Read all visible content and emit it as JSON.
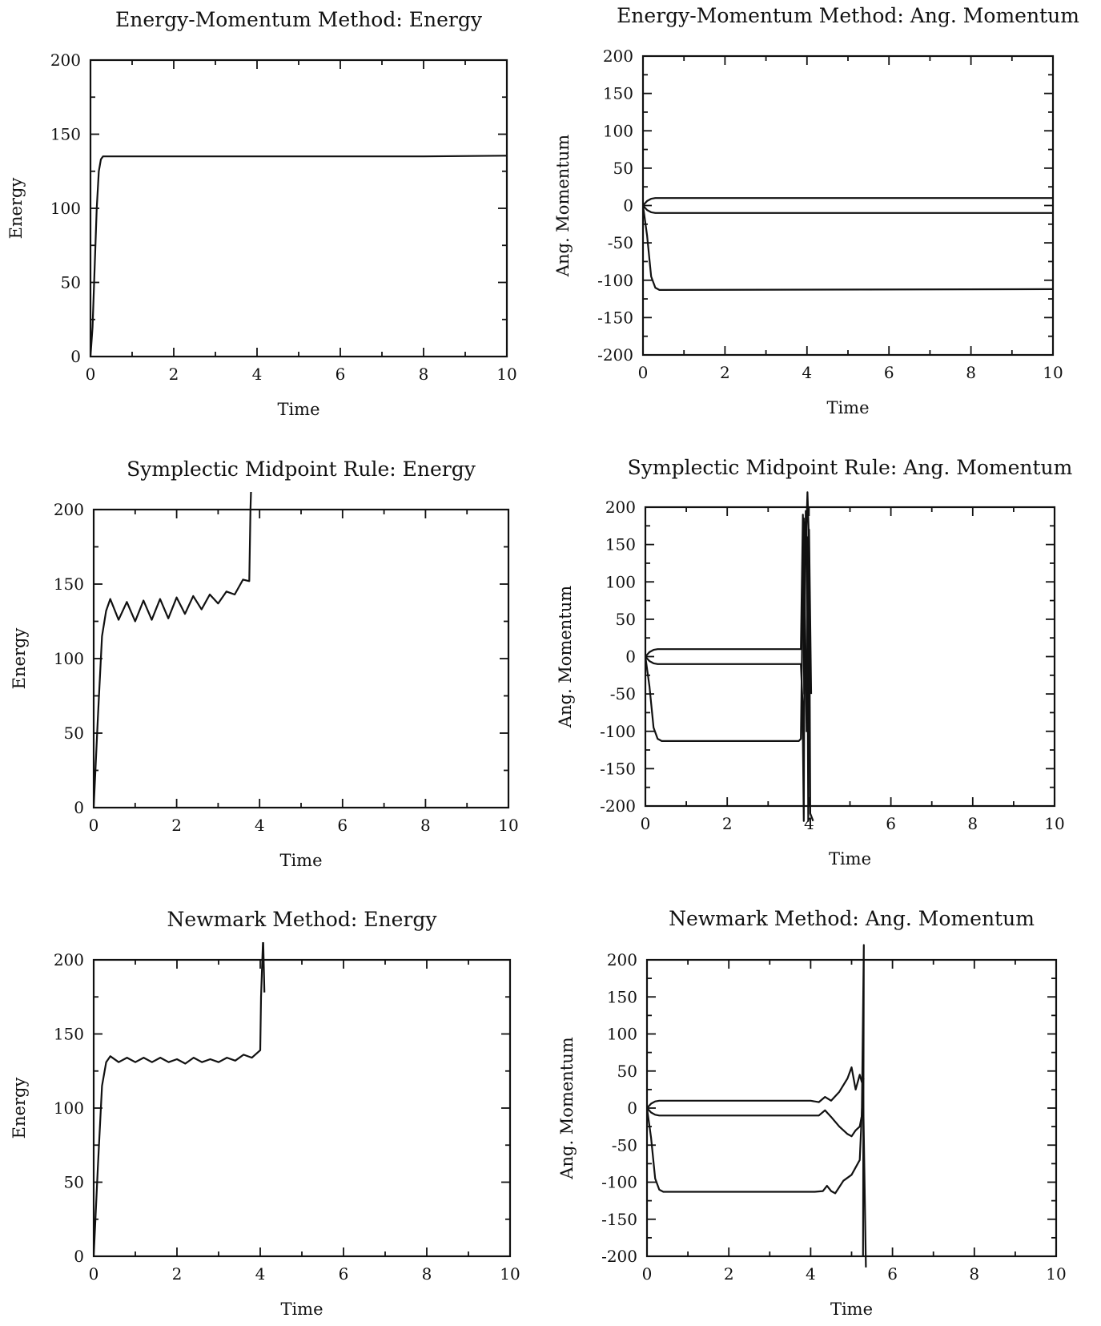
{
  "chart_data": [
    {
      "type": "line",
      "title": "Energy-Momentum Method: Energy",
      "xlabel": "Time",
      "ylabel": "Energy",
      "xlim": [
        0,
        10
      ],
      "ylim": [
        0,
        200
      ],
      "xticks": [
        0,
        2,
        4,
        6,
        8,
        10
      ],
      "yticks": [
        0,
        50,
        100,
        150,
        200
      ],
      "series": [
        {
          "x": [
            0,
            0.05,
            0.1,
            0.15,
            0.2,
            0.25,
            0.3,
            1,
            2,
            4,
            6,
            8,
            10
          ],
          "y": [
            0,
            20,
            60,
            100,
            125,
            133,
            135,
            135,
            135,
            135,
            135,
            135,
            135.5
          ]
        }
      ]
    },
    {
      "type": "line",
      "title": "Energy-Momentum Method: Ang. Momentum",
      "xlabel": "Time",
      "ylabel": "Ang. Momentum",
      "xlim": [
        0,
        10
      ],
      "ylim": [
        -200,
        200
      ],
      "xticks": [
        0,
        2,
        4,
        6,
        8,
        10
      ],
      "yticks": [
        -200,
        -150,
        -100,
        -50,
        0,
        50,
        100,
        150,
        200
      ],
      "series": [
        {
          "x": [
            0,
            0.1,
            0.2,
            0.3,
            10
          ],
          "y": [
            0,
            6,
            9,
            10,
            10
          ]
        },
        {
          "x": [
            0,
            0.1,
            0.2,
            0.3,
            10
          ],
          "y": [
            0,
            -6,
            -9,
            -10,
            -10
          ]
        },
        {
          "x": [
            0,
            0.1,
            0.2,
            0.3,
            0.4,
            10
          ],
          "y": [
            0,
            -40,
            -95,
            -110,
            -113,
            -112
          ]
        }
      ]
    },
    {
      "type": "line",
      "title": "Symplectic Midpoint Rule: Energy",
      "xlabel": "Time",
      "ylabel": "Energy",
      "xlim": [
        0,
        10
      ],
      "ylim": [
        0,
        200
      ],
      "xticks": [
        0,
        2,
        4,
        6,
        8,
        10
      ],
      "yticks": [
        0,
        50,
        100,
        150,
        200
      ],
      "series": [
        {
          "x": [
            0,
            0.1,
            0.2,
            0.3,
            0.4,
            0.6,
            0.8,
            1.0,
            1.2,
            1.4,
            1.6,
            1.8,
            2.0,
            2.2,
            2.4,
            2.6,
            2.8,
            3.0,
            3.2,
            3.4,
            3.6,
            3.75,
            3.78,
            3.8
          ],
          "y": [
            0,
            60,
            115,
            132,
            140,
            126,
            138,
            125,
            139,
            126,
            140,
            127,
            141,
            130,
            142,
            133,
            143,
            137,
            145,
            143,
            153,
            152,
            200,
            218
          ]
        }
      ]
    },
    {
      "type": "line",
      "title": "Symplectic Midpoint Rule: Ang. Momentum",
      "xlabel": "Time",
      "ylabel": "Ang. Momentum",
      "xlim": [
        0,
        10
      ],
      "ylim": [
        -200,
        200
      ],
      "xticks": [
        0,
        2,
        4,
        6,
        8,
        10
      ],
      "yticks": [
        -200,
        -150,
        -100,
        -50,
        0,
        50,
        100,
        150,
        200
      ],
      "series": [
        {
          "x": [
            0,
            0.1,
            0.2,
            0.3,
            3.8,
            3.85,
            3.88,
            3.92,
            3.95,
            3.98,
            4.0,
            4.05
          ],
          "y": [
            0,
            6,
            9,
            10,
            10,
            190,
            -50,
            195,
            150,
            -220,
            170,
            -50
          ]
        },
        {
          "x": [
            0,
            0.1,
            0.2,
            0.3,
            3.8,
            3.84,
            3.87,
            3.9,
            3.93,
            3.96,
            4.0,
            4.03,
            4.1
          ],
          "y": [
            0,
            -6,
            -9,
            -10,
            -10,
            -60,
            -220,
            180,
            160,
            220,
            150,
            -210,
            -220
          ]
        },
        {
          "x": [
            0,
            0.1,
            0.2,
            0.3,
            0.4,
            3.75,
            3.8,
            3.87,
            3.94,
            3.98,
            4.01
          ],
          "y": [
            0,
            -40,
            -95,
            -110,
            -113,
            -113,
            -110,
            185,
            -100,
            160,
            -140
          ]
        }
      ]
    },
    {
      "type": "line",
      "title": "Newmark Method: Energy",
      "xlabel": "Time",
      "ylabel": "Energy",
      "xlim": [
        0,
        10
      ],
      "ylim": [
        0,
        200
      ],
      "xticks": [
        0,
        2,
        4,
        6,
        8,
        10
      ],
      "yticks": [
        0,
        50,
        100,
        150,
        200
      ],
      "series": [
        {
          "x": [
            0,
            0.1,
            0.2,
            0.3,
            0.4,
            0.6,
            0.8,
            1.0,
            1.2,
            1.4,
            1.6,
            1.8,
            2.0,
            2.2,
            2.4,
            2.6,
            2.8,
            3.0,
            3.2,
            3.4,
            3.6,
            3.8,
            4.0,
            4.02,
            4.05,
            4.07,
            4.1
          ],
          "y": [
            0,
            60,
            115,
            131,
            135,
            131,
            134,
            131,
            134,
            131,
            134,
            131,
            133,
            130,
            134,
            131,
            133,
            131,
            134,
            132,
            136,
            134,
            139,
            175,
            200,
            215,
            178
          ]
        }
      ]
    },
    {
      "type": "line",
      "title": "Newmark Method: Ang. Momentum",
      "xlabel": "Time",
      "ylabel": "Ang. Momentum",
      "xlim": [
        0,
        10
      ],
      "ylim": [
        -200,
        200
      ],
      "xticks": [
        0,
        2,
        4,
        6,
        8,
        10
      ],
      "yticks": [
        -200,
        -150,
        -100,
        -50,
        0,
        50,
        100,
        150,
        200
      ],
      "series": [
        {
          "x": [
            0,
            0.1,
            0.2,
            0.3,
            4.0,
            4.2,
            4.35,
            4.5,
            4.7,
            4.9,
            5.0,
            5.1,
            5.2,
            5.25,
            5.3
          ],
          "y": [
            0,
            6,
            9,
            10,
            10,
            8,
            15,
            10,
            22,
            40,
            55,
            25,
            45,
            35,
            40
          ]
        },
        {
          "x": [
            0,
            0.1,
            0.2,
            0.3,
            4.0,
            4.2,
            4.35,
            4.5,
            4.7,
            4.9,
            5.0,
            5.1,
            5.2,
            5.25,
            5.3,
            5.28
          ],
          "y": [
            0,
            -6,
            -9,
            -10,
            -10,
            -10,
            -3,
            -12,
            -25,
            -35,
            -38,
            -30,
            -25,
            -10,
            220,
            -200
          ]
        },
        {
          "x": [
            0,
            0.1,
            0.2,
            0.3,
            0.4,
            4.1,
            4.3,
            4.4,
            4.5,
            4.6,
            4.8,
            5.0,
            5.2,
            5.28,
            5.35
          ],
          "y": [
            0,
            -40,
            -95,
            -110,
            -113,
            -113,
            -112,
            -105,
            -112,
            -115,
            -98,
            -90,
            -70,
            30,
            -215
          ]
        }
      ]
    }
  ]
}
